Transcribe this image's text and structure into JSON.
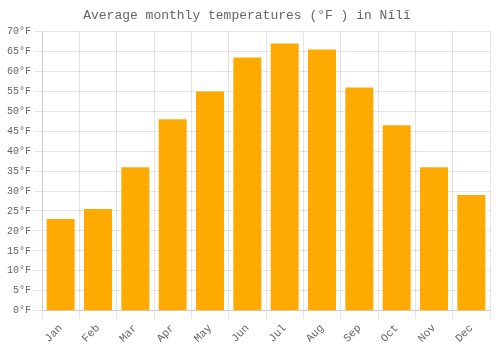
{
  "chart_data": {
    "type": "bar",
    "title": "Average monthly temperatures (°F ) in Nīlī",
    "categories": [
      "Jan",
      "Feb",
      "Mar",
      "Apr",
      "May",
      "Jun",
      "Jul",
      "Aug",
      "Sep",
      "Oct",
      "Nov",
      "Dec"
    ],
    "values": [
      23,
      25.5,
      36,
      48,
      55,
      63.5,
      67,
      65.5,
      56,
      46.5,
      36,
      29
    ],
    "color": "#FFAA00",
    "ylim": [
      0,
      70
    ],
    "yticks": [
      {
        "value": 0,
        "label": "0°F"
      },
      {
        "value": 5,
        "label": "5°F"
      },
      {
        "value": 10,
        "label": "10°F"
      },
      {
        "value": 15,
        "label": "15°F"
      },
      {
        "value": 20,
        "label": "20°F"
      },
      {
        "value": 25,
        "label": "25°F"
      },
      {
        "value": 30,
        "label": "30°F"
      },
      {
        "value": 35,
        "label": "35°F"
      },
      {
        "value": 40,
        "label": "40°F"
      },
      {
        "value": 45,
        "label": "45°F"
      },
      {
        "value": 50,
        "label": "50°F"
      },
      {
        "value": 55,
        "label": "55°F"
      },
      {
        "value": 60,
        "label": "60°F"
      },
      {
        "value": 65,
        "label": "65°F"
      },
      {
        "value": 70,
        "label": "70°F"
      }
    ],
    "grid": true
  }
}
